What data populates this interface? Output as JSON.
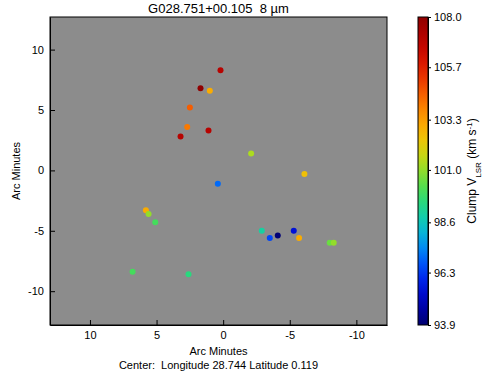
{
  "chart_data": {
    "type": "scatter",
    "title": "G028.751+00.105  8 µm",
    "x_label": "Arc Minutes",
    "y_label": "Arc Minutes",
    "subtitle": "Center:  Longitude 28.744 Latitude 0.119",
    "x": [
      0.2,
      1.7,
      1.0,
      2.5,
      2.7,
      3.2,
      1.1,
      -2.1,
      0.4,
      -6.1,
      5.8,
      5.6,
      5.1,
      -2.9,
      -3.5,
      -4.1,
      -5.3,
      -5.7,
      -8.0,
      -8.3,
      6.8,
      2.6
    ],
    "values": [
      8.3,
      6.8,
      6.6,
      5.2,
      3.6,
      2.8,
      3.3,
      1.4,
      -1.1,
      -0.3,
      -3.3,
      -3.6,
      -4.3,
      -5.0,
      -5.6,
      -5.4,
      -5.0,
      -5.6,
      -6.0,
      -6.0,
      -8.4,
      -8.6
    ],
    "velocity": [
      107.0,
      108.0,
      103.0,
      104.5,
      104.0,
      107.0,
      107.0,
      101.3,
      97.0,
      102.5,
      103.0,
      101.0,
      100.0,
      99.0,
      96.5,
      94.0,
      95.5,
      103.0,
      100.5,
      101.0,
      100.0,
      99.5
    ],
    "xlim": [
      13,
      -12.3
    ],
    "ylim": [
      -12.8,
      12.7
    ],
    "xticks": [
      10,
      5,
      0,
      -5,
      -10
    ],
    "yticks": [
      -10,
      -5,
      0,
      5,
      10
    ],
    "marker": "circle",
    "colorbar_label": [
      "Clump V",
      "LSR",
      " (km s",
      "-1",
      ")"
    ],
    "colorbar_range": [
      93.9,
      108.0
    ],
    "colorbar_ticks": [
      93.9,
      96.3,
      98.6,
      {
        "value": 101.0,
        "label": "101.0"
      },
      103.3,
      105.7,
      {
        "value": 108.0,
        "label": "108.0"
      }
    ]
  }
}
